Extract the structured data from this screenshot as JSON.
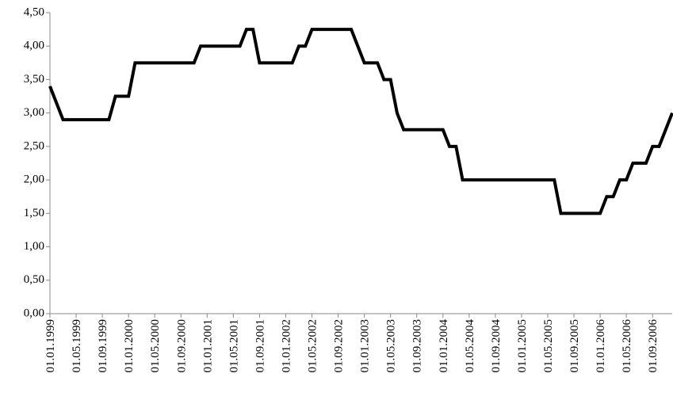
{
  "chart_data": {
    "type": "line",
    "categories": [
      "01.01.1999",
      null,
      null,
      null,
      "01.05.1999",
      null,
      null,
      null,
      "01.09.1999",
      null,
      null,
      null,
      "01.01.2000",
      null,
      null,
      null,
      "01.05.2000",
      null,
      null,
      null,
      "01.09.2000",
      null,
      null,
      null,
      "01.01.2001",
      null,
      null,
      null,
      "01.05.2001",
      null,
      null,
      null,
      "01.09.2001",
      null,
      null,
      null,
      "01.01.2002",
      null,
      null,
      null,
      "01.05.2002",
      null,
      null,
      null,
      "01.09.2002",
      null,
      null,
      null,
      "01.01.2003",
      null,
      null,
      null,
      "01.05.2003",
      null,
      null,
      null,
      "01.09.2003",
      null,
      null,
      null,
      "01.01.2004",
      null,
      null,
      null,
      "01.05.2004",
      null,
      null,
      null,
      "01.09.2004",
      null,
      null,
      null,
      "01.01.2005",
      null,
      null,
      null,
      "01.05.2005",
      null,
      null,
      null,
      "01.09.2005",
      null,
      null,
      null,
      "01.01.2006",
      null,
      null,
      null,
      "01.05.2006",
      null,
      null,
      null,
      "01.09.2006",
      null,
      null,
      null
    ],
    "values": [
      3.4,
      3.15,
      2.9,
      2.9,
      2.9,
      2.9,
      2.9,
      2.9,
      2.9,
      2.9,
      3.25,
      3.25,
      3.25,
      3.75,
      3.75,
      3.75,
      3.75,
      3.75,
      3.75,
      3.75,
      3.75,
      3.75,
      3.75,
      4.0,
      4.0,
      4.0,
      4.0,
      4.0,
      4.0,
      4.0,
      4.25,
      4.25,
      3.75,
      3.75,
      3.75,
      3.75,
      3.75,
      3.75,
      4.0,
      4.0,
      4.25,
      4.25,
      4.25,
      4.25,
      4.25,
      4.25,
      4.25,
      4.0,
      3.75,
      3.75,
      3.75,
      3.5,
      3.5,
      3.0,
      2.75,
      2.75,
      2.75,
      2.75,
      2.75,
      2.75,
      2.75,
      2.5,
      2.5,
      2.0,
      2.0,
      2.0,
      2.0,
      2.0,
      2.0,
      2.0,
      2.0,
      2.0,
      2.0,
      2.0,
      2.0,
      2.0,
      2.0,
      2.0,
      1.5,
      1.5,
      1.5,
      1.5,
      1.5,
      1.5,
      1.5,
      1.75,
      1.75,
      2.0,
      2.0,
      2.25,
      2.25,
      2.25,
      2.5,
      2.5,
      2.75,
      3.0
    ],
    "color": "#000000",
    "ylim": [
      0,
      4.5
    ],
    "yticks": [
      {
        "value": 0,
        "label": "0,00"
      },
      {
        "value": 0.5,
        "label": "0,50"
      },
      {
        "value": 1,
        "label": "1,00"
      },
      {
        "value": 1.5,
        "label": "1,50"
      },
      {
        "value": 2,
        "label": "2,00"
      },
      {
        "value": 2.5,
        "label": "2,50"
      },
      {
        "value": 3,
        "label": "3,00"
      },
      {
        "value": 3.5,
        "label": "3,50"
      },
      {
        "value": 4,
        "label": "4,00"
      },
      {
        "value": 4.5,
        "label": "4,50"
      }
    ],
    "grid": false
  }
}
